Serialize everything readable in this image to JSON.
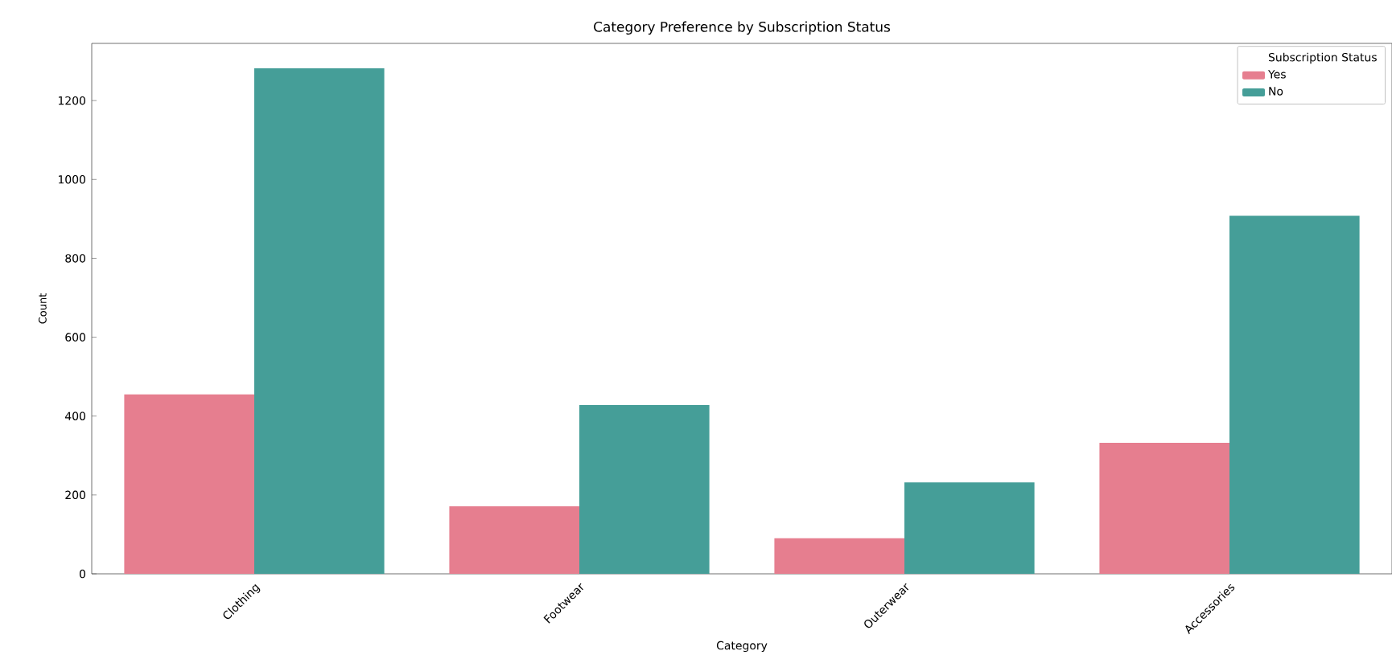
{
  "chart_data": {
    "type": "bar",
    "title": "Category Preference by Subscription Status",
    "xlabel": "Category",
    "ylabel": "Count",
    "legend_title": "Subscription Status",
    "legend": "top right",
    "categories": [
      "Clothing",
      "Footwear",
      "Outerwear",
      "Accessories"
    ],
    "series": [
      {
        "name": "Yes",
        "color": "#e67e8f",
        "values": [
          455,
          171,
          90,
          332
        ]
      },
      {
        "name": "No",
        "color": "#459e98",
        "values": [
          1282,
          428,
          232,
          908
        ]
      }
    ],
    "ylim": [
      0,
      1345
    ],
    "yticks": [
      0,
      200,
      400,
      600,
      800,
      1000,
      1200
    ]
  }
}
